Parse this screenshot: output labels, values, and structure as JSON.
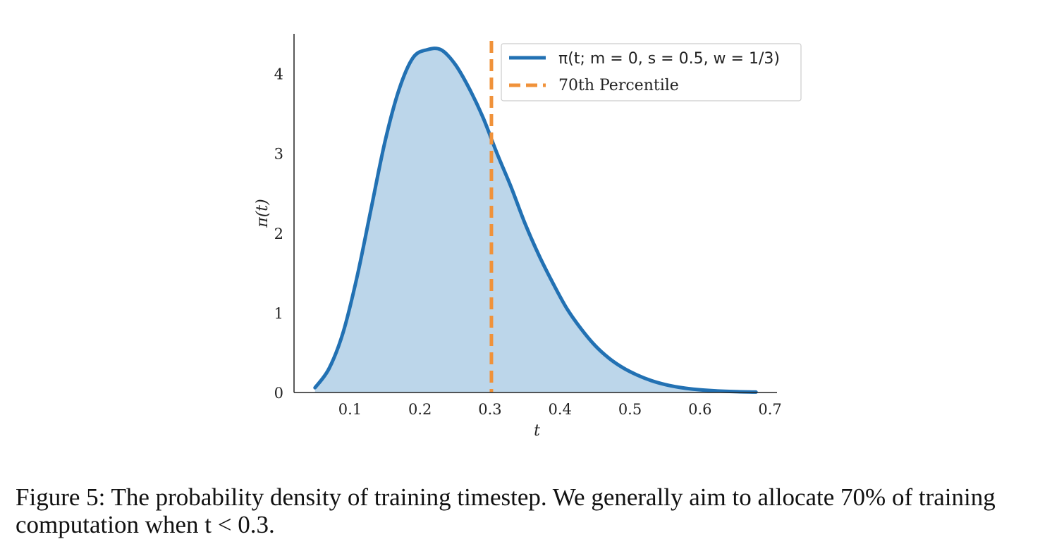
{
  "chart_data": {
    "type": "area",
    "title": "",
    "xlabel": "t",
    "ylabel": "π(t)",
    "xlim": [
      0.02,
      0.71
    ],
    "ylim": [
      0,
      4.5
    ],
    "xticks": [
      0.1,
      0.2,
      0.3,
      0.4,
      0.5,
      0.6,
      0.7
    ],
    "xtick_labels": [
      "0.1",
      "0.2",
      "0.3",
      "0.4",
      "0.5",
      "0.6",
      "0.7"
    ],
    "yticks": [
      0,
      1,
      2,
      3,
      4
    ],
    "ytick_labels": [
      "0",
      "1",
      "2",
      "3",
      "4"
    ],
    "series": [
      {
        "name": "π(t; m = 0, s = 0.5, w = 1/3)",
        "style": "solid",
        "fill": true,
        "color": "#2271b3",
        "fill_color": "#bcd6ea",
        "x": [
          0.05,
          0.07,
          0.09,
          0.11,
          0.13,
          0.15,
          0.17,
          0.19,
          0.21,
          0.23,
          0.25,
          0.27,
          0.29,
          0.31,
          0.33,
          0.35,
          0.37,
          0.39,
          0.41,
          0.43,
          0.45,
          0.47,
          0.49,
          0.51,
          0.53,
          0.55,
          0.57,
          0.59,
          0.62,
          0.65,
          0.68
        ],
        "y": [
          0.06,
          0.3,
          0.75,
          1.45,
          2.3,
          3.15,
          3.8,
          4.2,
          4.3,
          4.3,
          4.12,
          3.82,
          3.45,
          3.0,
          2.58,
          2.12,
          1.72,
          1.37,
          1.05,
          0.8,
          0.59,
          0.43,
          0.31,
          0.22,
          0.15,
          0.1,
          0.065,
          0.042,
          0.022,
          0.011,
          0.005
        ]
      },
      {
        "name": "70th Percentile",
        "style": "dashed",
        "type": "vline",
        "color": "#f0923a",
        "x_value": 0.302
      }
    ],
    "legend_position": "top-right",
    "grid": false
  },
  "caption": "Figure 5: The probability density of training timestep. We generally aim to allocate 70% of training computation when t < 0.3."
}
